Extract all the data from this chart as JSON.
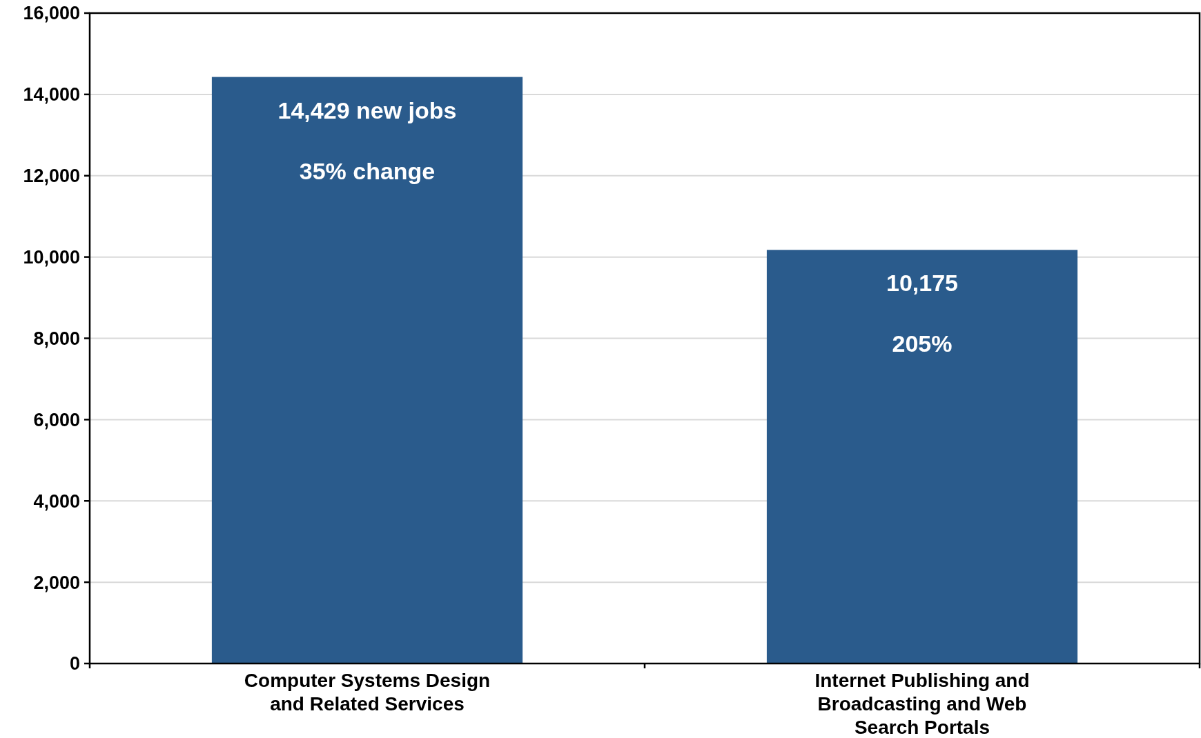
{
  "chart_data": {
    "type": "bar",
    "categories": [
      "Computer Systems Design and Related Services",
      "Internet Publishing and Broadcasting and Web Search Portals"
    ],
    "values": [
      14429,
      10175
    ],
    "color": "#2a5b8c",
    "value_labels": [
      "14,429 new jobs",
      "10,175"
    ],
    "annotations": [
      "35% change",
      "205%"
    ],
    "ylim": [
      0,
      16000
    ],
    "yticks": [
      {
        "value": 0,
        "label": "0"
      },
      {
        "value": 2000,
        "label": "2,000"
      },
      {
        "value": 4000,
        "label": "4,000"
      },
      {
        "value": 6000,
        "label": "6,000"
      },
      {
        "value": 8000,
        "label": "8,000"
      },
      {
        "value": 10000,
        "label": "10,000"
      },
      {
        "value": 12000,
        "label": "12,000"
      },
      {
        "value": 14000,
        "label": "14,000"
      },
      {
        "value": 16000,
        "label": "16,000"
      }
    ],
    "grid": "y"
  }
}
